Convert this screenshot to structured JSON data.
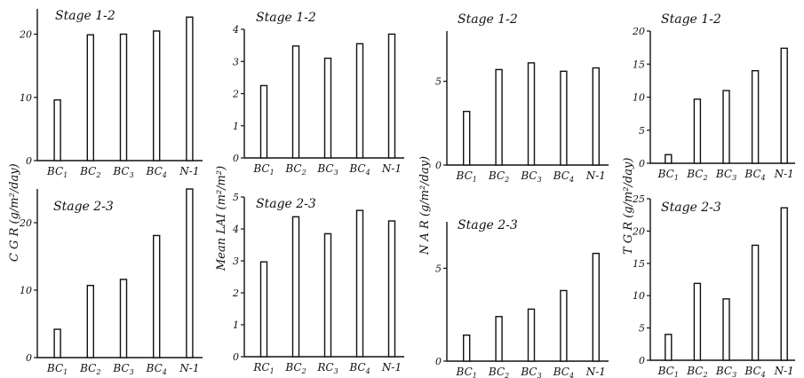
{
  "chart_data": [
    {
      "type": "bar",
      "title": "Stage 1-2",
      "ylabel": "",
      "categories": [
        "BC1",
        "BC2",
        "BC3",
        "BC4",
        "N-1"
      ],
      "values": [
        9.6,
        19.9,
        20.0,
        20.5,
        22.7
      ],
      "ylim": [
        0,
        24
      ],
      "yticks": [
        "0",
        "10",
        "20"
      ],
      "grid": false
    },
    {
      "type": "bar",
      "title": "Stage 1-2",
      "ylabel": "",
      "categories": [
        "BC1",
        "BC2",
        "BC3",
        "BC4",
        "N-1"
      ],
      "values": [
        2.25,
        3.48,
        3.1,
        3.55,
        3.85
      ],
      "ylim": [
        0,
        4
      ],
      "yticks": [
        "0",
        "1",
        "2",
        "3",
        "4"
      ],
      "grid": false
    },
    {
      "type": "bar",
      "title": "Stage 1-2",
      "ylabel": "",
      "categories": [
        "BC1",
        "BC2",
        "BC3",
        "BC4",
        "N-1"
      ],
      "values": [
        3.2,
        5.7,
        6.1,
        5.6,
        5.8
      ],
      "ylim": [
        0,
        8
      ],
      "yticks": [
        "0",
        "5"
      ],
      "grid": false
    },
    {
      "type": "bar",
      "title": "Stage 1-2",
      "ylabel": "",
      "categories": [
        "BC1",
        "BC2",
        "BC3",
        "BC4",
        "N-1"
      ],
      "values": [
        1.3,
        9.7,
        11.0,
        14.0,
        17.4
      ],
      "ylim": [
        0,
        20
      ],
      "yticks": [
        "0",
        "5",
        "10",
        "15",
        "20"
      ],
      "grid": false
    },
    {
      "type": "bar",
      "title": "Stage 2-3",
      "ylabel": "",
      "categories": [
        "BC1",
        "BC2",
        "BC3",
        "BC4",
        "N-1"
      ],
      "values": [
        4.2,
        10.7,
        11.6,
        18.1,
        25.0
      ],
      "ylim": [
        0,
        25
      ],
      "yticks": [
        "0",
        "10",
        "20"
      ],
      "grid": false
    },
    {
      "type": "bar",
      "title": "Stage 2-3",
      "ylabel": "",
      "categories": [
        "RC1",
        "BC2",
        "RC3",
        "BC4",
        "N-1"
      ],
      "values": [
        2.97,
        4.38,
        3.85,
        4.58,
        4.25
      ],
      "ylim": [
        0,
        5
      ],
      "yticks": [
        "0",
        "1",
        "2",
        "3",
        "4",
        "5"
      ],
      "grid": false
    },
    {
      "type": "bar",
      "title": "Stage 2-3",
      "ylabel": "",
      "categories": [
        "BC1",
        "BC2",
        "BC3",
        "BC4",
        "N-1"
      ],
      "values": [
        1.4,
        2.4,
        2.8,
        3.8,
        5.8
      ],
      "ylim": [
        0,
        7.5
      ],
      "yticks": [
        "0",
        "5"
      ],
      "grid": false
    },
    {
      "type": "bar",
      "title": "Stage 2-3",
      "ylabel": "",
      "categories": [
        "BC1",
        "BC2",
        "BC3",
        "BC4",
        "N-1"
      ],
      "values": [
        4.0,
        11.9,
        9.5,
        17.8,
        23.6
      ],
      "ylim": [
        0,
        25
      ],
      "yticks": [
        "0",
        "5",
        "10",
        "15",
        "20",
        "25"
      ],
      "grid": false
    }
  ],
  "ylabels": [
    {
      "text": "C G R  (g/m²/day)"
    },
    {
      "text": "Mean LAI  (m²/m²)"
    },
    {
      "text": "N A R  (g/m²/day)"
    },
    {
      "text": "T G R  (g/m²/day)"
    }
  ]
}
